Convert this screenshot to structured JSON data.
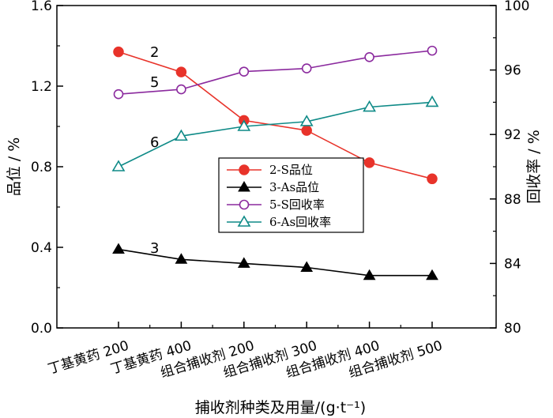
{
  "chart_data": {
    "type": "line",
    "categories": [
      "丁基黄药 200",
      "丁基黄药 400",
      "组合捕收剂 200",
      "组合捕收剂 300",
      "组合捕收剂 400",
      "组合捕收剂 500"
    ],
    "xlabel": "捕收剂种类及用量/(g·t⁻¹)",
    "ylabel_left": "品位 / %",
    "ylabel_right": "回收率 / %",
    "ylim_left": [
      0.0,
      1.6
    ],
    "yticks_left": [
      "0.0",
      "0.4",
      "0.8",
      "1.2",
      "1.6"
    ],
    "ylim_right": [
      80,
      100
    ],
    "yticks_right": [
      "80",
      "84",
      "88",
      "92",
      "96",
      "100"
    ],
    "grid": false,
    "legend_position": "center-right",
    "series": [
      {
        "name": "2-S品位",
        "label": "2",
        "axis": "left",
        "color": "#e8332a",
        "marker": "circle-filled",
        "values": [
          1.37,
          1.27,
          1.03,
          0.98,
          0.82,
          0.74
        ]
      },
      {
        "name": "3-As品位",
        "label": "3",
        "axis": "left",
        "color": "#000000",
        "marker": "triangle-filled",
        "values": [
          0.39,
          0.34,
          0.32,
          0.3,
          0.26,
          0.26
        ]
      },
      {
        "name": "5-S回收率",
        "label": "5",
        "axis": "right",
        "color": "#8b2a9e",
        "marker": "circle-open",
        "values": [
          94.5,
          94.8,
          95.9,
          96.1,
          96.8,
          97.2
        ]
      },
      {
        "name": "6-As回收率",
        "label": "6",
        "axis": "right",
        "color": "#0e8a87",
        "marker": "triangle-open",
        "values": [
          90.0,
          91.9,
          92.5,
          92.8,
          93.7,
          94.0
        ]
      }
    ]
  }
}
